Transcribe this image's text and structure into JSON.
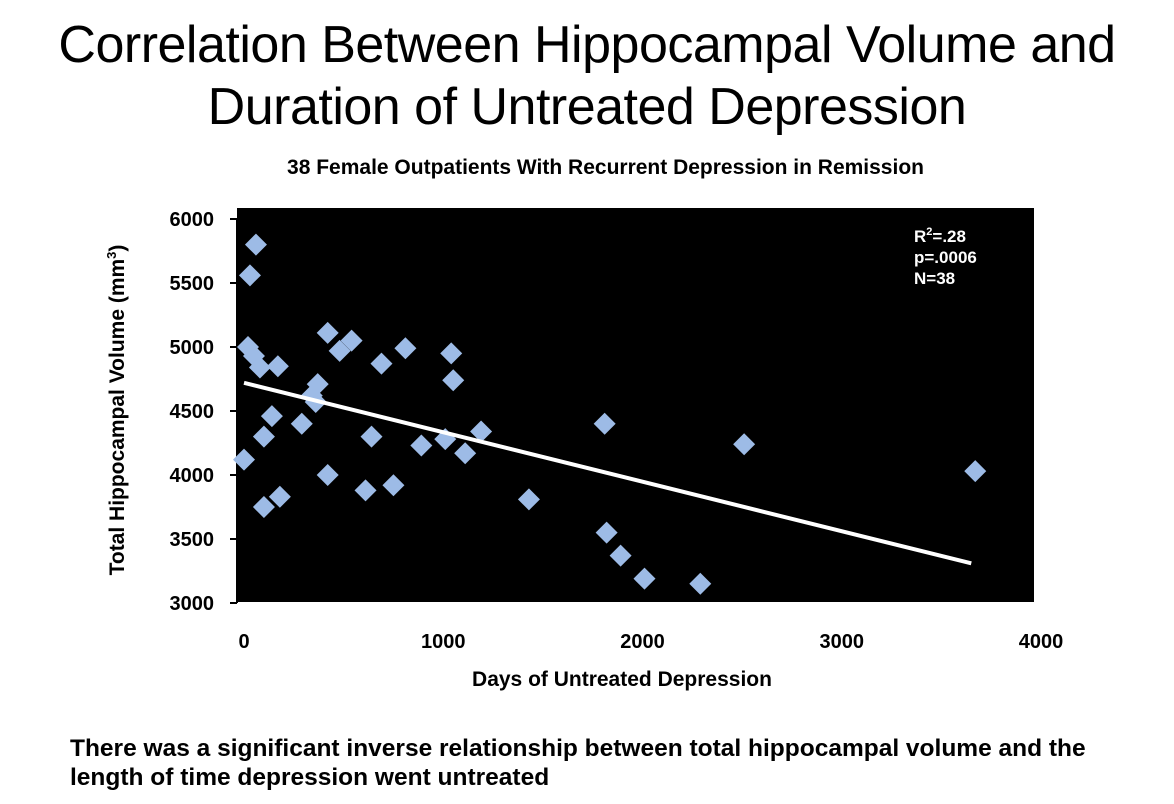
{
  "title_lines": [
    "Correlation Between Hippocampal Volume and",
    "Duration of Untreated Depression"
  ],
  "subtitle": "38 Female Outpatients With Recurrent Depression in Remission",
  "caption": "There was a significant inverse relationship between total hippocampal volume and the length of time depression went untreated",
  "colors": {
    "plot_bg": "#000000",
    "marker": "#9dbbe6",
    "trend": "#ffffff"
  },
  "chart_data": {
    "type": "scatter",
    "xlabel": "Days of Untreated Depression",
    "ylabel_main": "Total Hippocampal Volume (mm",
    "ylabel_sup": "3",
    "ylabel_close": ")",
    "xlim": [
      0,
      4000
    ],
    "ylim": [
      3000,
      6000
    ],
    "xticks": [
      0,
      1000,
      2000,
      3000,
      4000
    ],
    "yticks": [
      3000,
      3500,
      4000,
      4500,
      5000,
      5500,
      6000
    ],
    "stats": {
      "r2_prefix": "R",
      "r2_sup": "2",
      "r2_value": "=.28",
      "p": "p=.0006",
      "n": "N=38"
    },
    "trendline": {
      "x": [
        0,
        3650
      ],
      "y": [
        4720,
        3310
      ]
    },
    "points": [
      {
        "x": 60,
        "y": 5800
      },
      {
        "x": 30,
        "y": 5560
      },
      {
        "x": 20,
        "y": 5000
      },
      {
        "x": 50,
        "y": 4930
      },
      {
        "x": 80,
        "y": 4840
      },
      {
        "x": 170,
        "y": 4850
      },
      {
        "x": 420,
        "y": 5110
      },
      {
        "x": 540,
        "y": 5050
      },
      {
        "x": 480,
        "y": 4970
      },
      {
        "x": 690,
        "y": 4870
      },
      {
        "x": 810,
        "y": 4990
      },
      {
        "x": 1040,
        "y": 4950
      },
      {
        "x": 1050,
        "y": 4740
      },
      {
        "x": 370,
        "y": 4710
      },
      {
        "x": 340,
        "y": 4620
      },
      {
        "x": 360,
        "y": 4570
      },
      {
        "x": 140,
        "y": 4460
      },
      {
        "x": 290,
        "y": 4400
      },
      {
        "x": 100,
        "y": 4300
      },
      {
        "x": 640,
        "y": 4300
      },
      {
        "x": 0,
        "y": 4120
      },
      {
        "x": 420,
        "y": 4000
      },
      {
        "x": 610,
        "y": 3880
      },
      {
        "x": 750,
        "y": 3920
      },
      {
        "x": 180,
        "y": 3830
      },
      {
        "x": 100,
        "y": 3750
      },
      {
        "x": 890,
        "y": 4230
      },
      {
        "x": 1010,
        "y": 4280
      },
      {
        "x": 1110,
        "y": 4170
      },
      {
        "x": 1190,
        "y": 4340
      },
      {
        "x": 1430,
        "y": 3810
      },
      {
        "x": 1810,
        "y": 4400
      },
      {
        "x": 1820,
        "y": 3550
      },
      {
        "x": 1890,
        "y": 3370
      },
      {
        "x": 2010,
        "y": 3190
      },
      {
        "x": 2290,
        "y": 3150
      },
      {
        "x": 2510,
        "y": 4240
      },
      {
        "x": 3670,
        "y": 4030
      }
    ]
  }
}
